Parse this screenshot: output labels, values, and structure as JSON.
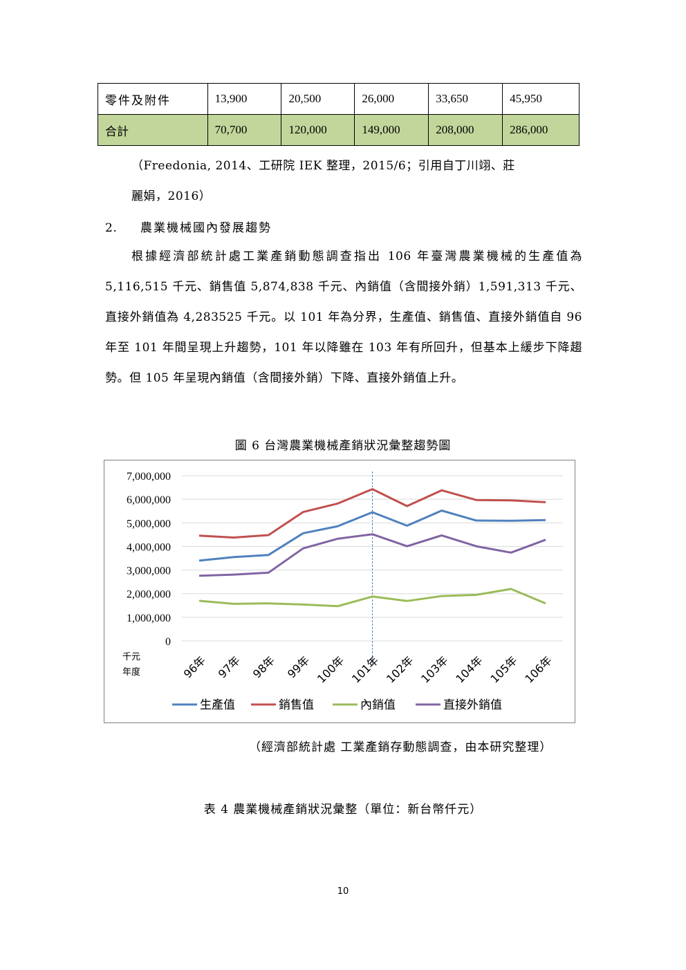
{
  "top_table": {
    "rows": [
      {
        "label": "零件及附件",
        "values": [
          "13,900",
          "20,500",
          "26,000",
          "33,650",
          "45,950"
        ]
      },
      {
        "label": "合計",
        "values": [
          "70,700",
          "120,000",
          "149,000",
          "208,000",
          "286,000"
        ]
      }
    ]
  },
  "source_note_1": {
    "line1": "（Freedonia, 2014、工研院 IEK 整理，2015/6；引用自丁川翊、莊",
    "line2": "麗娟，2016）"
  },
  "section": {
    "number": "2.",
    "title": "農業機械國內發展趨勢"
  },
  "paragraph": "根據經濟部統計處工業產銷動態調查指出 106 年臺灣農業機械的生產值為 5,116,515 千元、銷售值 5,874,838 千元、內銷值（含間接外銷）1,591,313 千元、直接外銷值為 4,283525 千元。以 101 年為分界，生產值、銷售值、直接外銷值自 96 年至 101 年間呈現上升趨勢，101 年以降雖在 103 年有所回升，但基本上緩步下降趨勢。但 105 年呈現內銷值（含間接外銷）下降、直接外銷值上升。",
  "figure_caption": "圖 6 台灣農業機械產銷狀況彙整趨勢圖",
  "chart_data": {
    "type": "line",
    "title": "",
    "y_unit_label": "千元",
    "x_unit_label": "年度",
    "categories": [
      "96年",
      "97年",
      "98年",
      "99年",
      "100年",
      "101年",
      "102年",
      "103年",
      "104年",
      "105年",
      "106年"
    ],
    "ylim": [
      0,
      7000000
    ],
    "yticks": [
      "0",
      "1,000,000",
      "2,000,000",
      "3,000,000",
      "4,000,000",
      "5,000,000",
      "6,000,000",
      "7,000,000"
    ],
    "grid": true,
    "divider_at": "101年",
    "legend_position": "bottom",
    "series": [
      {
        "name": "生產值",
        "color": "#4f81bd",
        "values": [
          3400000,
          3550000,
          3640000,
          4560000,
          4860000,
          5450000,
          4880000,
          5520000,
          5100000,
          5090000,
          5116515
        ]
      },
      {
        "name": "銷售值",
        "color": "#c0504d",
        "values": [
          4460000,
          4380000,
          4480000,
          5460000,
          5820000,
          6430000,
          5710000,
          6380000,
          5970000,
          5950000,
          5874838
        ]
      },
      {
        "name": "內銷值",
        "color": "#9bbb59",
        "values": [
          1700000,
          1570000,
          1590000,
          1540000,
          1470000,
          1880000,
          1690000,
          1900000,
          1950000,
          2200000,
          1591313
        ]
      },
      {
        "name": "直接外銷值",
        "color": "#8064a2",
        "values": [
          2760000,
          2810000,
          2890000,
          3920000,
          4330000,
          4520000,
          4010000,
          4470000,
          4010000,
          3740000,
          4283525
        ]
      }
    ]
  },
  "figure_source": "（經濟部統計處 工業產銷存動態調查，由本研究整理）",
  "table_caption": "表 4 農業機械產銷狀況彙整（單位：新台幣仟元）",
  "page_number": "10"
}
